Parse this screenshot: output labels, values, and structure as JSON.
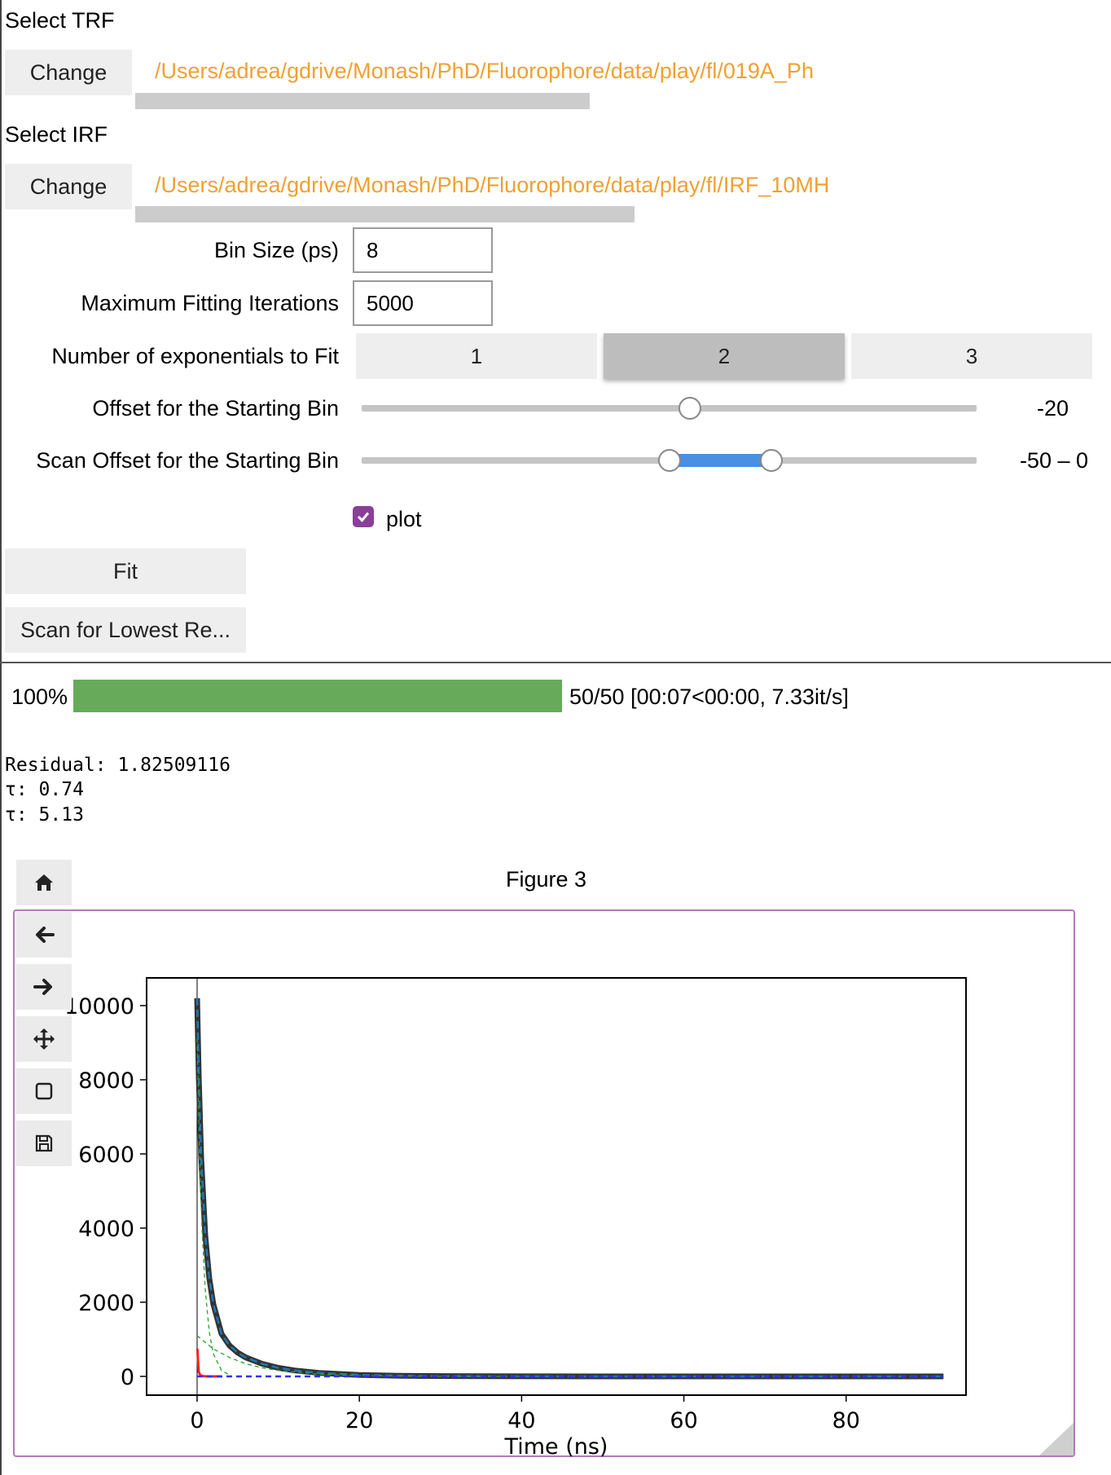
{
  "trf": {
    "label": "Select TRF",
    "button": "Change",
    "path": "/Users/adrea/gdrive/Monash/PhD/Fluorophore/data/play/fl/019A_Ph"
  },
  "irf": {
    "label": "Select IRF",
    "button": "Change",
    "path": "/Users/adrea/gdrive/Monash/PhD/Fluorophore/data/play/fl/IRF_10MH"
  },
  "params": {
    "bin_size": {
      "label": "Bin Size (ps)",
      "value": "8"
    },
    "max_iter": {
      "label": "Maximum Fitting Iterations",
      "value": "5000"
    },
    "exponentials": {
      "label": "Number of exponentials to Fit",
      "options": [
        "1",
        "2",
        "3"
      ],
      "selected": "2"
    },
    "offset": {
      "label": "Offset for the Starting Bin",
      "value": "-20",
      "min": -100,
      "max": 50,
      "current": -20
    },
    "scan_offset": {
      "label": "Scan Offset for the Starting Bin",
      "value": "-50 – 0",
      "min": -200,
      "max": 100,
      "low": -50,
      "high": 0
    },
    "plot": {
      "label": "plot",
      "checked": true
    }
  },
  "actions": {
    "fit": "Fit",
    "scan": "Scan for Lowest Re..."
  },
  "progress": {
    "percent_label": "100%",
    "fraction": 1.0,
    "status": "50/50 [00:07<00:00, 7.33it/s]",
    "color": "#66aa5a"
  },
  "output": {
    "residual": "Residual: 1.82509116",
    "tau1": "τ: 0.74",
    "tau2": "τ: 5.13"
  },
  "figure": {
    "title": "Figure 3",
    "toolbar": [
      "home-icon",
      "back-icon",
      "forward-icon",
      "move-icon",
      "zoom-icon",
      "save-icon"
    ]
  },
  "chart_data": {
    "type": "line",
    "title": "",
    "xlabel": "Time (ns)",
    "ylabel": "",
    "xlim": [
      -4.5,
      96
    ],
    "ylim": [
      -250,
      10500
    ],
    "xticks": [
      "0",
      "20",
      "40",
      "60",
      "80"
    ],
    "yticks": [
      "0",
      "2000",
      "4000",
      "6000",
      "8000",
      "10000"
    ],
    "grid": false,
    "series": [
      {
        "kind": "data",
        "color": "#333333",
        "x": [
          0,
          0.2,
          0.5,
          1,
          1.5,
          2,
          3,
          4,
          5,
          6,
          8,
          10,
          12,
          15,
          20,
          25,
          30,
          40,
          50,
          60,
          70,
          80,
          92
        ],
        "y": [
          10200,
          8100,
          5900,
          3800,
          2650,
          1950,
          1150,
          830,
          640,
          510,
          340,
          230,
          160,
          95,
          40,
          18,
          9,
          3,
          1,
          0,
          0,
          0,
          0
        ]
      },
      {
        "kind": "fit",
        "color": "#1f77b4",
        "x": [
          0,
          0.2,
          0.5,
          1,
          1.5,
          2,
          3,
          4,
          5,
          6,
          8,
          10,
          12,
          15,
          20,
          25,
          30,
          40,
          50,
          60,
          70,
          80,
          92
        ],
        "y": [
          10200,
          8100,
          5900,
          3800,
          2650,
          1950,
          1150,
          830,
          640,
          510,
          340,
          230,
          160,
          95,
          40,
          18,
          9,
          3,
          1,
          0,
          0,
          0,
          0
        ]
      },
      {
        "kind": "component-fast",
        "color": "#2ca02c",
        "x": [
          0,
          0.3,
          0.6,
          1,
          1.5,
          2,
          3,
          4
        ],
        "y": [
          9100,
          6000,
          4000,
          2350,
          1200,
          610,
          160,
          40
        ]
      },
      {
        "kind": "component-slow",
        "color": "#2ca02c",
        "x": [
          0,
          2,
          4,
          6,
          8,
          10,
          15,
          20,
          30,
          40
        ],
        "y": [
          1100,
          740,
          510,
          340,
          230,
          160,
          60,
          22,
          3,
          0
        ]
      },
      {
        "kind": "irf",
        "color": "#ff2020",
        "x": [
          0,
          0.05,
          0.1,
          0.2,
          0.4,
          0.8,
          1.5,
          3
        ],
        "y": [
          750,
          700,
          450,
          120,
          30,
          5,
          0,
          0
        ]
      },
      {
        "kind": "residual",
        "color": "#3030ff",
        "x": [
          0,
          5,
          10,
          20,
          40,
          60,
          80,
          92
        ],
        "y": [
          0,
          0,
          0,
          0,
          0,
          0,
          0,
          0
        ]
      }
    ],
    "vline_x": 0
  }
}
